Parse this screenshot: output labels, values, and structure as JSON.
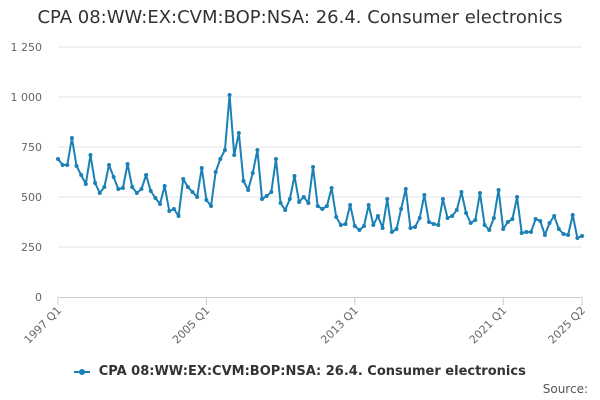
{
  "colors": {
    "series": "#1a80b6",
    "grid": "#e6e6e6",
    "axis_text": "#666666",
    "axis_line": "#cccccc"
  },
  "chart_data": {
    "type": "line",
    "title": "CPA 08:WW:EX:CVM:BOP:NSA: 26.4. Consumer electronics",
    "xlabel": "",
    "ylabel": "",
    "ylim": [
      0,
      1250
    ],
    "y_ticks": [
      0,
      250,
      500,
      750,
      1000,
      1250
    ],
    "y_tick_labels": [
      "0",
      "250",
      "500",
      "750",
      "1 000",
      "1 250"
    ],
    "x_tick_labels": [
      {
        "label": "1997 Q1",
        "index": 0
      },
      {
        "label": "2005 Q1",
        "index": 32
      },
      {
        "label": "2013 Q1",
        "index": 64
      },
      {
        "label": "2021 Q1",
        "index": 96
      },
      {
        "label": "2025 Q2",
        "index": 113
      }
    ],
    "grid": true,
    "legend_position": "bottom-center",
    "series": [
      {
        "name": "CPA 08:WW:EX:CVM:BOP:NSA: 26.4. Consumer electronics",
        "start": "1997 Q1",
        "frequency": "quarterly",
        "values": [
          690,
          660,
          660,
          795,
          655,
          610,
          565,
          710,
          570,
          520,
          550,
          660,
          600,
          540,
          545,
          665,
          550,
          520,
          540,
          610,
          530,
          495,
          465,
          555,
          430,
          440,
          405,
          590,
          550,
          525,
          500,
          645,
          485,
          455,
          625,
          690,
          735,
          1010,
          710,
          820,
          580,
          535,
          620,
          735,
          490,
          505,
          525,
          690,
          470,
          435,
          490,
          605,
          475,
          500,
          470,
          650,
          455,
          440,
          455,
          545,
          400,
          360,
          365,
          460,
          355,
          335,
          355,
          460,
          360,
          405,
          345,
          490,
          325,
          340,
          440,
          540,
          345,
          350,
          395,
          510,
          375,
          365,
          360,
          490,
          395,
          405,
          435,
          525,
          420,
          370,
          385,
          520,
          360,
          335,
          395,
          535,
          340,
          375,
          390,
          500,
          320,
          325,
          325,
          390,
          380,
          310,
          370,
          405,
          340,
          315,
          310,
          410,
          295,
          305
        ]
      }
    ]
  },
  "legend": {
    "label": "CPA 08:WW:EX:CVM:BOP:NSA: 26.4. Consumer electronics"
  },
  "credits": {
    "label": "Source:"
  }
}
